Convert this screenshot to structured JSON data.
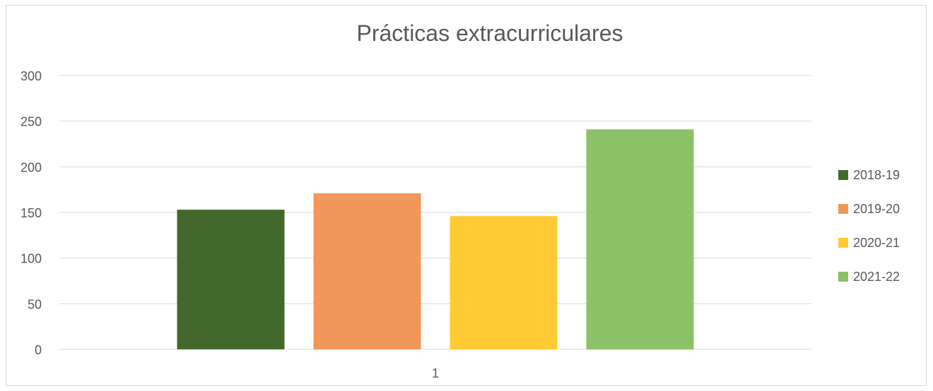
{
  "chart_data": {
    "type": "bar",
    "title": "Prácticas extracurriculares",
    "categories": [
      "1"
    ],
    "series": [
      {
        "name": "2018-19",
        "values": [
          153
        ],
        "color": "#43682b"
      },
      {
        "name": "2019-20",
        "values": [
          171
        ],
        "color": "#f1975a"
      },
      {
        "name": "2020-21",
        "values": [
          146
        ],
        "color": "#ffca33"
      },
      {
        "name": "2021-22",
        "values": [
          241
        ],
        "color": "#8cc168"
      }
    ],
    "ylim": [
      0,
      300
    ],
    "yticks": [
      0,
      50,
      100,
      150,
      200,
      250,
      300
    ],
    "xlabel": "",
    "ylabel": "",
    "grid": true,
    "legend_position": "right"
  }
}
